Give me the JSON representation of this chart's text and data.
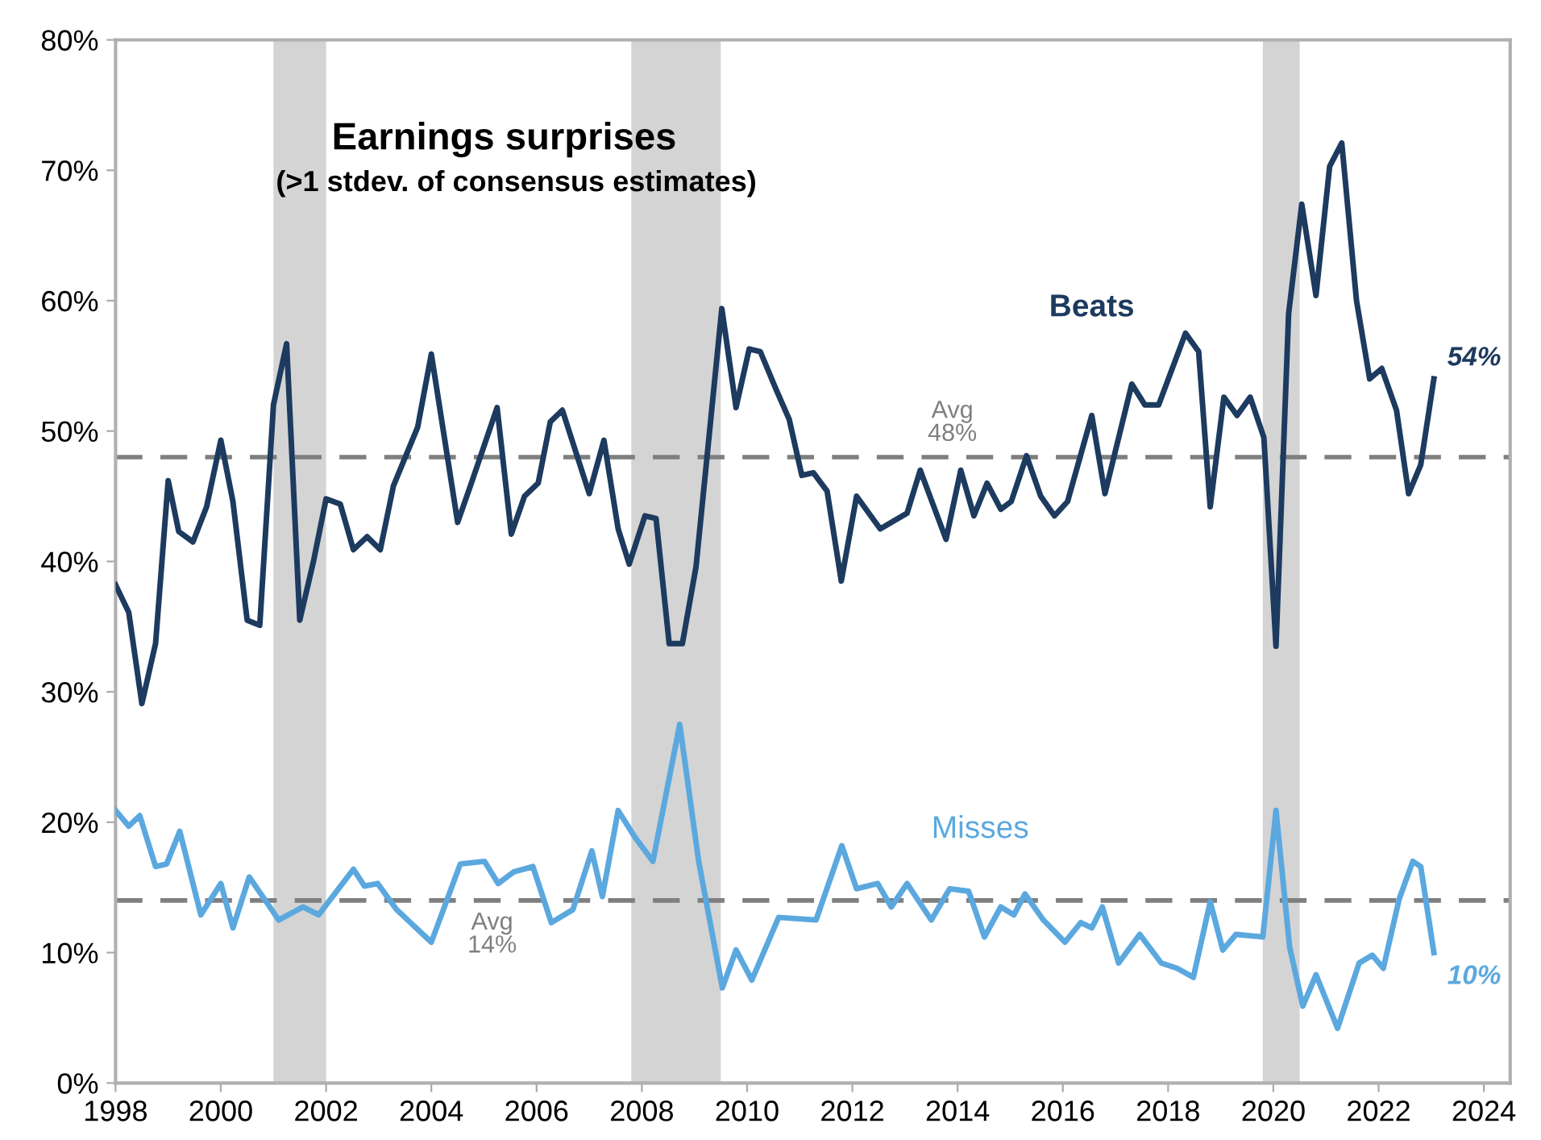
{
  "chart_data": {
    "type": "line",
    "title": "Earnings surprises",
    "subtitle": "(>1 stdev. of consensus estimates)",
    "xlim": [
      1998,
      2024.5
    ],
    "xticks": [
      1998,
      2000,
      2002,
      2004,
      2006,
      2008,
      2010,
      2012,
      2014,
      2016,
      2018,
      2020,
      2022,
      2024
    ],
    "ylim": [
      0,
      80
    ],
    "yticks": [
      {
        "value": 0,
        "label": "0%"
      },
      {
        "value": 10,
        "label": "10%"
      },
      {
        "value": 20,
        "label": "20%"
      },
      {
        "value": 30,
        "label": "30%"
      },
      {
        "value": 40,
        "label": "40%"
      },
      {
        "value": 50,
        "label": "50%"
      },
      {
        "value": 60,
        "label": "60%"
      },
      {
        "value": 70,
        "label": "70%"
      },
      {
        "value": 80,
        "label": "80%"
      }
    ],
    "grid": false,
    "legend": false,
    "marker": "none",
    "line_style": "solid",
    "series": [
      {
        "name": "Beats",
        "color": "#1d3a5f",
        "x": [
          1998.0,
          1998.25,
          1998.5,
          1998.76,
          1999.0,
          1999.2,
          1999.47,
          1999.73,
          2000.0,
          2000.23,
          2000.5,
          2000.74,
          2001.0,
          2001.25,
          2001.5,
          2001.76,
          2002.0,
          2002.27,
          2002.52,
          2002.78,
          2003.03,
          2003.28,
          2003.74,
          2004.0,
          2004.5,
          2004.76,
          2005.25,
          2005.52,
          2005.77,
          2006.03,
          2006.26,
          2006.49,
          2007.0,
          2007.28,
          2007.55,
          2007.76,
          2008.06,
          2008.27,
          2008.52,
          2008.77,
          2009.03,
          2009.52,
          2009.79,
          2010.04,
          2010.25,
          2010.55,
          2010.8,
          2011.04,
          2011.26,
          2011.52,
          2011.79,
          2012.08,
          2012.53,
          2013.04,
          2013.29,
          2013.78,
          2014.06,
          2014.31,
          2014.56,
          2014.82,
          2015.02,
          2015.31,
          2015.58,
          2015.84,
          2016.09,
          2016.55,
          2016.8,
          2017.31,
          2017.56,
          2017.82,
          2018.33,
          2018.58,
          2018.8,
          2019.06,
          2019.31,
          2019.56,
          2019.82,
          2020.05,
          2020.29,
          2020.54,
          2020.81,
          2021.07,
          2021.3,
          2021.58,
          2021.83,
          2022.06,
          2022.34,
          2022.57,
          2022.8,
          2023.05
        ],
        "values": [
          38.2,
          36.1,
          29.1,
          33.7,
          46.2,
          42.3,
          41.5,
          44.2,
          49.3,
          44.6,
          35.5,
          35.1,
          52.0,
          56.7,
          35.5,
          40.0,
          44.8,
          44.4,
          40.9,
          41.9,
          40.9,
          45.8,
          50.3,
          55.9,
          43.0,
          46.0,
          51.8,
          42.1,
          45.0,
          46.0,
          50.7,
          51.6,
          45.2,
          49.3,
          42.5,
          39.8,
          43.5,
          43.3,
          33.7,
          33.7,
          39.6,
          59.4,
          51.8,
          56.3,
          56.1,
          53.2,
          50.9,
          46.6,
          46.8,
          45.4,
          38.5,
          45.0,
          42.5,
          43.7,
          47.0,
          41.7,
          47.0,
          43.5,
          46.0,
          44.0,
          44.6,
          48.1,
          45.0,
          43.5,
          44.6,
          51.2,
          45.2,
          53.6,
          52.0,
          52.0,
          57.5,
          56.1,
          44.2,
          52.6,
          51.2,
          52.6,
          49.5,
          33.5,
          59.0,
          67.4,
          60.4,
          70.3,
          72.1,
          60.0,
          54.0,
          54.8,
          51.6,
          45.2,
          47.4,
          54
        ]
      },
      {
        "name": "Misses",
        "color": "#5ba8df",
        "x": [
          1998.0,
          1998.25,
          1998.46,
          1998.76,
          1998.97,
          1999.22,
          1999.62,
          2000.0,
          2000.23,
          2000.54,
          2001.1,
          2001.56,
          2001.86,
          2002.52,
          2002.73,
          2002.98,
          2003.34,
          2004.0,
          2004.55,
          2005.01,
          2005.27,
          2005.57,
          2005.93,
          2006.28,
          2006.69,
          2007.05,
          2007.25,
          2007.55,
          2007.86,
          2008.21,
          2008.72,
          2009.08,
          2009.53,
          2009.79,
          2010.09,
          2010.6,
          2011.31,
          2011.8,
          2012.08,
          2012.48,
          2012.74,
          2013.04,
          2013.5,
          2013.85,
          2014.21,
          2014.51,
          2014.82,
          2015.07,
          2015.28,
          2015.63,
          2016.04,
          2016.34,
          2016.55,
          2016.75,
          2017.06,
          2017.46,
          2017.87,
          2018.17,
          2018.48,
          2018.8,
          2019.04,
          2019.29,
          2019.8,
          2020.05,
          2020.31,
          2020.56,
          2020.81,
          2021.22,
          2021.63,
          2021.88,
          2022.09,
          2022.39,
          2022.65,
          2022.8,
          2023.05
        ],
        "values": [
          20.9,
          19.7,
          20.5,
          16.6,
          16.8,
          19.3,
          12.9,
          15.3,
          11.9,
          15.8,
          12.5,
          13.5,
          12.9,
          16.4,
          15.1,
          15.3,
          13.3,
          10.8,
          16.8,
          17.0,
          15.3,
          16.2,
          16.6,
          12.3,
          13.3,
          17.8,
          14.3,
          20.9,
          18.9,
          17.0,
          27.5,
          17.0,
          7.3,
          10.2,
          7.9,
          12.7,
          12.5,
          18.2,
          14.9,
          15.3,
          13.5,
          15.3,
          12.5,
          14.9,
          14.7,
          11.2,
          13.5,
          12.9,
          14.5,
          12.5,
          10.8,
          12.3,
          11.9,
          13.5,
          9.2,
          11.4,
          9.2,
          8.8,
          8.1,
          13.9,
          10.2,
          11.4,
          11.2,
          20.9,
          10.4,
          5.9,
          8.3,
          4.2,
          9.2,
          9.8,
          8.8,
          14.1,
          17.0,
          16.6,
          10
        ]
      }
    ],
    "ref_lines": [
      {
        "axis": "y",
        "value": 48,
        "label": "Avg\n48%",
        "color": "#7f7f7f",
        "line_style": "dashed"
      },
      {
        "axis": "y",
        "value": 14,
        "label": "Avg\n14%",
        "color": "#7f7f7f",
        "line_style": "dashed"
      }
    ],
    "bands": [
      {
        "axis": "x",
        "from": 2001.0,
        "to": 2002.0,
        "color": "#d4d4d4"
      },
      {
        "axis": "x",
        "from": 2007.8,
        "to": 2009.5,
        "color": "#d4d4d4"
      },
      {
        "axis": "x",
        "from": 2019.8,
        "to": 2020.5,
        "color": "#d4d4d4"
      }
    ],
    "annotations": [
      {
        "text": "54%",
        "x": 2023.05,
        "y": 54
      },
      {
        "text": "10%",
        "x": 2023.05,
        "y": 10
      }
    ]
  }
}
